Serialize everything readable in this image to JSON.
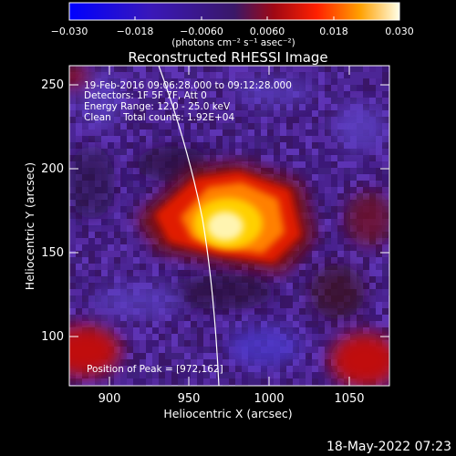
{
  "colorbar": {
    "ticks": [
      "−0.030",
      "−0.018",
      "−0.0060",
      "0.0060",
      "0.018",
      "0.030"
    ],
    "unit_label": "(photons cm⁻² s⁻¹ asec⁻²)",
    "colors": [
      "#0000ff",
      "#4010a8",
      "#4a1a7a",
      "#8a0a10",
      "#ff2000",
      "#ff9a00",
      "#ffffe0"
    ]
  },
  "title": "Reconstructed RHESSI Image",
  "annotations": {
    "time_range": "19-Feb-2016 09:06:28.000 to 09:12:28.000",
    "detectors": "Detectors: 1F 5F 7F, Att 0",
    "energy": "Energy Range: 12.0 - 25.0 keV",
    "clean_counts": "Clean    Total counts: 1.92E+04",
    "peak": "Position of Peak = [972,162]"
  },
  "axes": {
    "xlabel": "Heliocentric X (arcsec)",
    "ylabel": "Heliocentric Y (arcsec)",
    "xticks": [
      "900",
      "950",
      "1000",
      "1050"
    ],
    "yticks": [
      "100",
      "150",
      "200",
      "250"
    ]
  },
  "footer_timestamp": "18-May-2022 07:23",
  "palette": {
    "background": "#000000",
    "limb_line": "#ffffff",
    "text": "#ffffff"
  }
}
